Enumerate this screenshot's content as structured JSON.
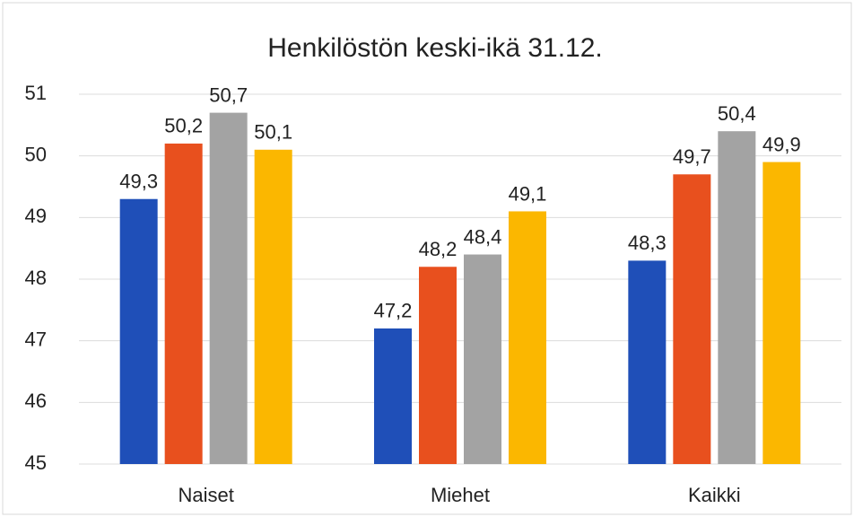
{
  "chart_data": {
    "type": "bar",
    "title": "Henkilöstön keski-ikä 31.12.",
    "categories": [
      "Naiset",
      "Miehet",
      "Kaikki"
    ],
    "series": [
      {
        "color": "#1f4fb8",
        "values": [
          49.3,
          47.2,
          48.3
        ],
        "value_labels": [
          "49,3",
          "47,2",
          "48,3"
        ]
      },
      {
        "color": "#e8501e",
        "values": [
          50.2,
          48.2,
          49.7
        ],
        "value_labels": [
          "50,2",
          "48,2",
          "49,7"
        ]
      },
      {
        "color": "#a3a3a3",
        "values": [
          50.7,
          48.4,
          50.4
        ],
        "value_labels": [
          "50,7",
          "48,4",
          "50,4"
        ]
      },
      {
        "color": "#fbb700",
        "values": [
          50.1,
          49.1,
          49.9
        ],
        "value_labels": [
          "50,1",
          "49,1",
          "49,9"
        ]
      }
    ],
    "ylim": [
      45,
      51
    ],
    "yticks": [
      45,
      46,
      47,
      48,
      49,
      50,
      51
    ],
    "grid": true
  }
}
